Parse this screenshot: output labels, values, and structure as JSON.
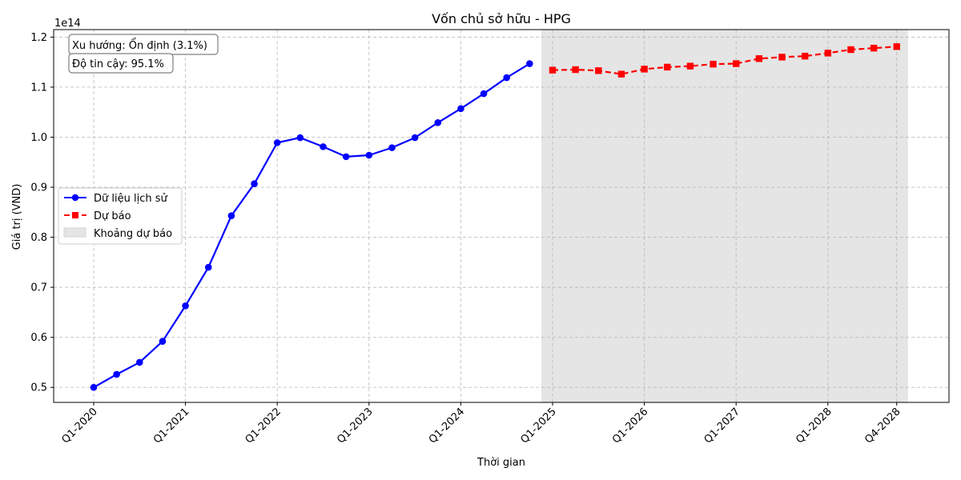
{
  "chart_data": {
    "type": "line",
    "title": "Vốn chủ sở hữu - HPG",
    "xlabel": "Thời gian",
    "ylabel": "Giá trị (VND)",
    "y_multiplier_label": "1e14",
    "ylim": [
      0.47,
      1.215
    ],
    "y_ticks": [
      0.5,
      0.6,
      0.7,
      0.8,
      0.9,
      1.0,
      1.1,
      1.2
    ],
    "x_tick_labels": [
      "Q1-2020",
      "Q1-2021",
      "Q1-2022",
      "Q1-2023",
      "Q1-2024",
      "Q1-2025",
      "Q1-2026",
      "Q1-2027",
      "Q1-2028",
      "Q4-2028"
    ],
    "grid": true,
    "legend_position": "center-left",
    "annotations": {
      "trend": "Xu hướng: Ổn định (3.1%)",
      "confidence": "Độ tin cậy: 95.1%"
    },
    "series": [
      {
        "name": "Dữ liệu lịch sử",
        "color": "#0000ff",
        "style": "solid",
        "marker": "circle",
        "x": [
          "Q1-2020",
          "Q2-2020",
          "Q3-2020",
          "Q4-2020",
          "Q1-2021",
          "Q2-2021",
          "Q3-2021",
          "Q4-2021",
          "Q1-2022",
          "Q2-2022",
          "Q3-2022",
          "Q4-2022",
          "Q1-2023",
          "Q2-2023",
          "Q3-2023",
          "Q4-2023",
          "Q1-2024",
          "Q2-2024",
          "Q3-2024",
          "Q4-2024"
        ],
        "values": [
          0.5,
          0.526,
          0.55,
          0.592,
          0.663,
          0.74,
          0.843,
          0.907,
          0.989,
          0.999,
          0.981,
          0.961,
          0.964,
          0.979,
          0.999,
          1.029,
          1.057,
          1.087,
          1.119,
          1.147
        ]
      },
      {
        "name": "Dự báo",
        "color": "#ff0000",
        "style": "dashed",
        "marker": "square",
        "x": [
          "Q1-2025",
          "Q2-2025",
          "Q3-2025",
          "Q4-2025",
          "Q1-2026",
          "Q2-2026",
          "Q3-2026",
          "Q4-2026",
          "Q1-2027",
          "Q2-2027",
          "Q3-2027",
          "Q4-2027",
          "Q1-2028",
          "Q2-2028",
          "Q3-2028",
          "Q4-2028"
        ],
        "values": [
          1.134,
          1.135,
          1.133,
          1.126,
          1.136,
          1.14,
          1.142,
          1.146,
          1.147,
          1.157,
          1.16,
          1.162,
          1.168,
          1.175,
          1.178,
          1.181
        ]
      }
    ],
    "shaded_region": {
      "name": "Khoảng dự báo",
      "color": "#d3d3d3",
      "x_start": "Q1-2025",
      "x_end": "Q4-2028"
    }
  }
}
